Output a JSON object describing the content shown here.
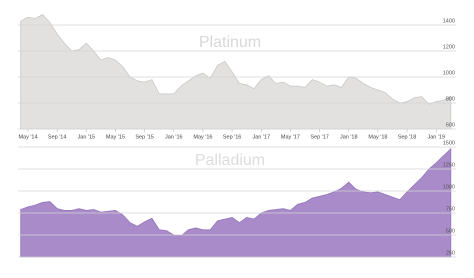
{
  "chart_data": [
    {
      "type": "area",
      "title": "Platinum",
      "color": "#e2e1e0",
      "line_color": "#c9c8c7",
      "categories": [
        null,
        "May '14",
        null,
        null,
        null,
        "Sep '14",
        null,
        null,
        null,
        "Jan '15",
        null,
        null,
        null,
        "May '15",
        null,
        null,
        null,
        "Sep '15",
        null,
        null,
        null,
        "Jan '16",
        null,
        null,
        null,
        "May '16",
        null,
        null,
        null,
        "Sep '16",
        null,
        null,
        null,
        "Jan '17",
        null,
        null,
        null,
        "May '17",
        null,
        null,
        null,
        "Sep '17",
        null,
        null,
        null,
        "Jan '18",
        null,
        null,
        null,
        "May '18",
        null,
        null,
        null,
        "Sep '18",
        null,
        null,
        null,
        "Jan '19",
        null,
        null
      ],
      "values": [
        1430,
        1460,
        1450,
        1480,
        1420,
        1330,
        1260,
        1200,
        1210,
        1260,
        1200,
        1130,
        1150,
        1130,
        1080,
        1000,
        970,
        960,
        980,
        870,
        870,
        870,
        930,
        970,
        1010,
        1030,
        990,
        1090,
        1120,
        1040,
        950,
        940,
        910,
        980,
        1010,
        950,
        960,
        930,
        930,
        920,
        980,
        960,
        930,
        940,
        920,
        1000,
        990,
        950,
        920,
        900,
        880,
        830,
        800,
        810,
        840,
        850,
        790,
        810,
        820,
        850
      ],
      "ylim": [
        600,
        1500
      ],
      "yticks": [
        600,
        800,
        1000,
        1200,
        1400
      ],
      "grid": true
    },
    {
      "type": "area",
      "title": "Palladium",
      "color": "#a88bc8",
      "line_color": "#9574bc",
      "values": [
        790,
        820,
        840,
        870,
        880,
        800,
        780,
        780,
        800,
        780,
        790,
        760,
        770,
        780,
        730,
        640,
        600,
        650,
        690,
        560,
        550,
        500,
        490,
        560,
        580,
        560,
        560,
        660,
        680,
        700,
        640,
        700,
        680,
        750,
        780,
        790,
        800,
        780,
        850,
        870,
        920,
        940,
        960,
        990,
        1030,
        1100,
        1020,
        990,
        980,
        990,
        960,
        930,
        900,
        990,
        1070,
        1150,
        1250,
        1320,
        1400,
        1480
      ],
      "ylim": [
        250,
        1500
      ],
      "yticks": [
        250,
        500,
        750,
        1000,
        1250,
        1500
      ],
      "grid": true
    }
  ]
}
